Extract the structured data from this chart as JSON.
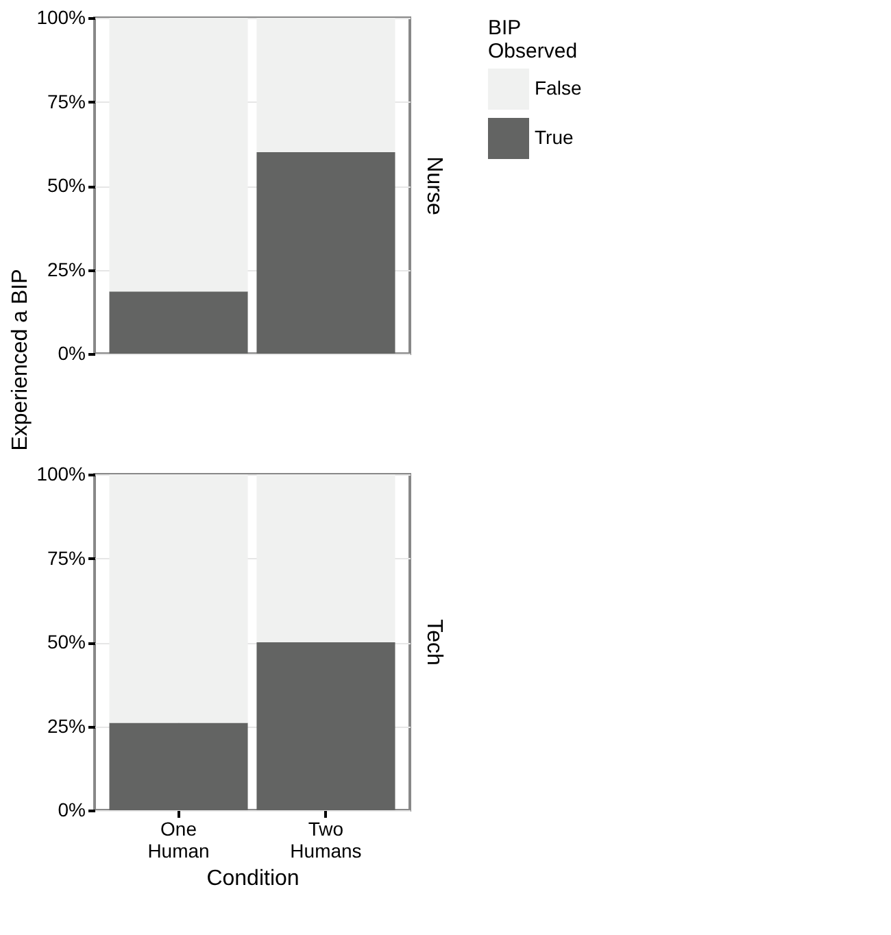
{
  "chart_data": [
    {
      "type": "bar",
      "stacked": true,
      "y2label": "Nurse",
      "ylabel": "Experienced a BIP",
      "legend_title": "BIP Observed",
      "legend": "right",
      "grid": true,
      "categories": [
        null,
        null
      ],
      "series": [
        {
          "name": "True",
          "color": "#636463",
          "values": [
            18.5,
            60
          ]
        },
        {
          "name": "False",
          "color": "#f0f1f0",
          "values": [
            81.5,
            40
          ]
        }
      ],
      "ylim": [
        0,
        100
      ],
      "yticks": [
        {
          "value": 0,
          "label": "0%"
        },
        {
          "value": 25,
          "label": "25%"
        },
        {
          "value": 50,
          "label": "50%"
        },
        {
          "value": 75,
          "label": "75%"
        },
        {
          "value": 100,
          "label": "100%"
        }
      ],
      "tick_labels": "y"
    },
    {
      "type": "bar",
      "stacked": true,
      "y2label": "Tech",
      "xlabel": "Condition",
      "grid": true,
      "legend": false,
      "categories": [
        "One Human",
        "Two Humans"
      ],
      "series": [
        {
          "color": "#636463",
          "values": [
            26,
            50
          ]
        },
        {
          "color": "#f0f1f0",
          "values": [
            74,
            50
          ]
        }
      ],
      "ylim": [
        0,
        100
      ],
      "yticks": [
        {
          "value": 0,
          "label": "0%"
        },
        {
          "value": 25,
          "label": "25%"
        },
        {
          "value": 50,
          "label": "50%"
        },
        {
          "value": 75,
          "label": "75%"
        },
        {
          "value": 100,
          "label": "100%"
        }
      ]
    }
  ]
}
